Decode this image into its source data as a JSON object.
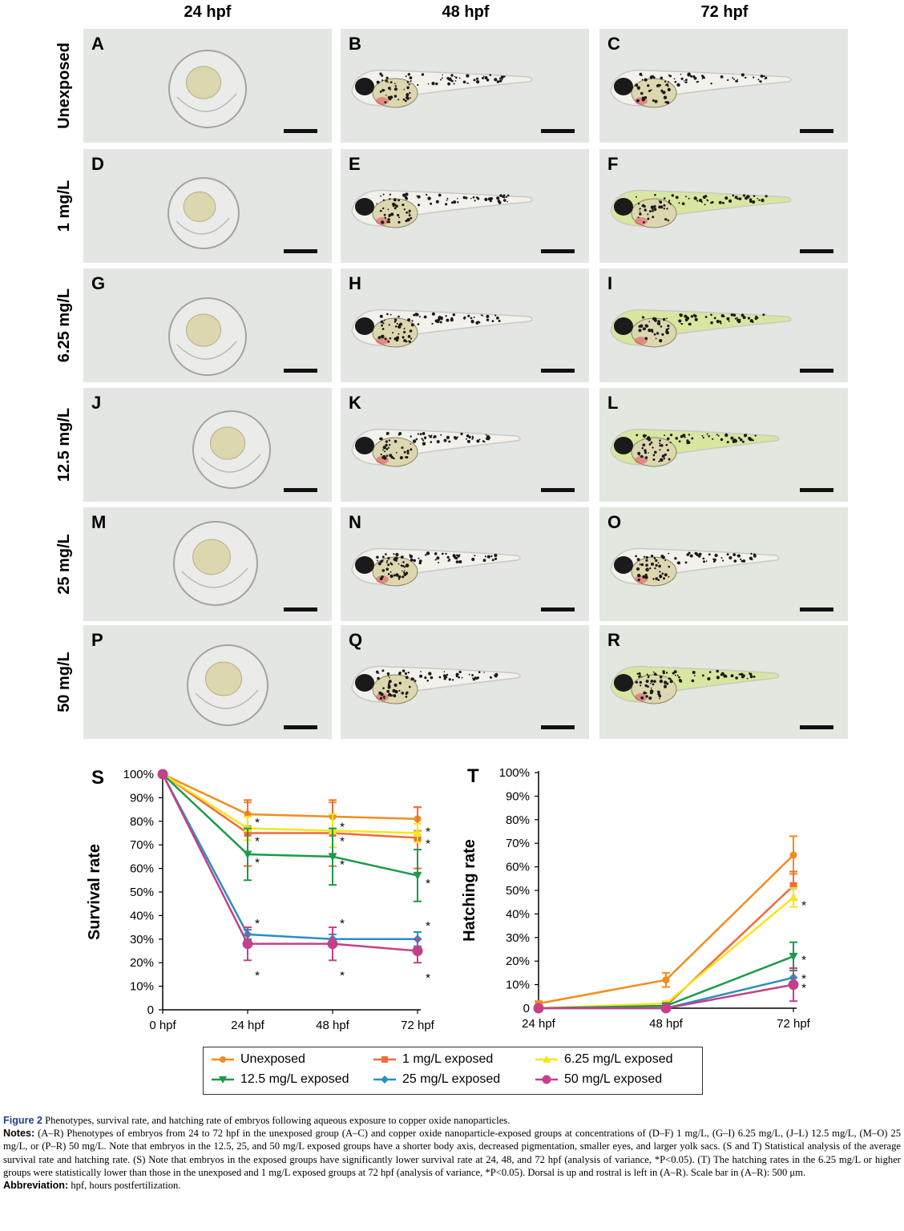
{
  "figure": {
    "column_headers": [
      "24 hpf",
      "48 hpf",
      "72 hpf"
    ],
    "row_labels": [
      "Unexposed",
      "1 mg/L",
      "6.25 mg/L",
      "12.5 mg/L",
      "25 mg/L",
      "50 mg/L"
    ],
    "panels": [
      {
        "letter": "A",
        "kind": "egg"
      },
      {
        "letter": "B",
        "kind": "larva"
      },
      {
        "letter": "C",
        "kind": "larva"
      },
      {
        "letter": "D",
        "kind": "egg"
      },
      {
        "letter": "E",
        "kind": "larva"
      },
      {
        "letter": "F",
        "kind": "larva"
      },
      {
        "letter": "G",
        "kind": "egg"
      },
      {
        "letter": "H",
        "kind": "larva"
      },
      {
        "letter": "I",
        "kind": "larva"
      },
      {
        "letter": "J",
        "kind": "egg"
      },
      {
        "letter": "K",
        "kind": "larva"
      },
      {
        "letter": "L",
        "kind": "larva"
      },
      {
        "letter": "M",
        "kind": "egg"
      },
      {
        "letter": "N",
        "kind": "larva"
      },
      {
        "letter": "O",
        "kind": "larva"
      },
      {
        "letter": "P",
        "kind": "egg"
      },
      {
        "letter": "Q",
        "kind": "larva"
      },
      {
        "letter": "R",
        "kind": "larva"
      }
    ],
    "colors": {
      "panel_bg": "#e4e6e4",
      "yolk": "#ddd7b0",
      "pigment": "#1a1a1a",
      "tail": "#c9c9c4",
      "green_tint": "#d8e6a0",
      "red": "#e05060"
    }
  },
  "chart_data": [
    {
      "panel_letter": "S",
      "type": "line",
      "title": "",
      "xlabel": "",
      "ylabel": "Survival rate",
      "categories": [
        "0 hpf",
        "24 hpf",
        "48 hpf",
        "72 hpf"
      ],
      "yticks": [
        "0",
        "10%",
        "20%",
        "30%",
        "40%",
        "50%",
        "60%",
        "70%",
        "80%",
        "90%",
        "100%"
      ],
      "ylim": [
        0,
        100
      ],
      "series": [
        {
          "name": "Unexposed",
          "color": "#f28c1e",
          "marker": "circle",
          "values": [
            100,
            83,
            82,
            81
          ],
          "err": [
            0,
            5,
            6,
            5
          ]
        },
        {
          "name": "1 mg/L exposed",
          "color": "#ef6b3a",
          "marker": "square",
          "values": [
            100,
            75,
            75,
            73
          ],
          "err": [
            0,
            14,
            14,
            13
          ]
        },
        {
          "name": "6.25 mg/L exposed",
          "color": "#f5e61a",
          "marker": "triangle-up",
          "values": [
            100,
            77,
            76,
            75
          ],
          "err": [
            0,
            5,
            7,
            4
          ]
        },
        {
          "name": "12.5 mg/L exposed",
          "color": "#1b9a4a",
          "marker": "triangle-down",
          "values": [
            100,
            66,
            65,
            57
          ],
          "err": [
            0,
            11,
            12,
            11
          ]
        },
        {
          "name": "25 mg/L exposed",
          "color": "#2a8fc2",
          "marker": "diamond",
          "values": [
            100,
            32,
            30,
            30
          ],
          "err": [
            0,
            2,
            2,
            3
          ]
        },
        {
          "name": "50 mg/L exposed",
          "color": "#c4408a",
          "marker": "circle",
          "values": [
            100,
            28,
            28,
            25
          ],
          "err": [
            0,
            7,
            7,
            5
          ]
        }
      ],
      "asterisks": [
        {
          "x": "24 hpf",
          "y": 80,
          "text": "*"
        },
        {
          "x": "24 hpf",
          "y": 72,
          "text": "*"
        },
        {
          "x": "24 hpf",
          "y": 63,
          "text": "*"
        },
        {
          "x": "48 hpf",
          "y": 78,
          "text": "*"
        },
        {
          "x": "48 hpf",
          "y": 72,
          "text": "*"
        },
        {
          "x": "48 hpf",
          "y": 62,
          "text": "*"
        },
        {
          "x": "72 hpf",
          "y": 76,
          "text": "*"
        },
        {
          "x": "72 hpf",
          "y": 71,
          "text": "*"
        },
        {
          "x": "72 hpf",
          "y": 54,
          "text": "*"
        },
        {
          "x": "24 hpf",
          "y": 37,
          "text": "*"
        },
        {
          "x": "48 hpf",
          "y": 37,
          "text": "*"
        },
        {
          "x": "72 hpf",
          "y": 36,
          "text": "*"
        },
        {
          "x": "24 hpf",
          "y": 15,
          "text": "*"
        },
        {
          "x": "48 hpf",
          "y": 15,
          "text": "*"
        },
        {
          "x": "72 hpf",
          "y": 14,
          "text": "*"
        }
      ]
    },
    {
      "panel_letter": "T",
      "type": "line",
      "title": "",
      "xlabel": "",
      "ylabel": "Hatching rate",
      "categories": [
        "24 hpf",
        "48 hpf",
        "72 hpf"
      ],
      "yticks": [
        "0",
        "10%",
        "20%",
        "30%",
        "40%",
        "50%",
        "60%",
        "70%",
        "80%",
        "90%",
        "100%"
      ],
      "ylim": [
        0,
        100
      ],
      "series": [
        {
          "name": "Unexposed",
          "color": "#f28c1e",
          "marker": "circle",
          "values": [
            2,
            12,
            65
          ],
          "err": [
            1,
            3,
            8
          ]
        },
        {
          "name": "1 mg/L exposed",
          "color": "#ef6b3a",
          "marker": "square",
          "values": [
            0,
            1,
            52
          ],
          "err": [
            0,
            1,
            6
          ]
        },
        {
          "name": "6.25 mg/L exposed",
          "color": "#f5e61a",
          "marker": "triangle-up",
          "values": [
            0,
            2,
            47
          ],
          "err": [
            0,
            1,
            4
          ]
        },
        {
          "name": "12.5 mg/L exposed",
          "color": "#1b9a4a",
          "marker": "triangle-down",
          "values": [
            0,
            1,
            22
          ],
          "err": [
            0,
            1,
            6
          ]
        },
        {
          "name": "25 mg/L exposed",
          "color": "#2a8fc2",
          "marker": "diamond",
          "values": [
            0,
            0,
            13
          ],
          "err": [
            0,
            0,
            4
          ]
        },
        {
          "name": "50 mg/L exposed",
          "color": "#c4408a",
          "marker": "circle",
          "values": [
            0,
            0,
            10
          ],
          "err": [
            0,
            0,
            7
          ]
        }
      ],
      "asterisks": [
        {
          "x": "72 hpf",
          "y": 44,
          "text": "*"
        },
        {
          "x": "72 hpf",
          "y": 21,
          "text": "*"
        },
        {
          "x": "72 hpf",
          "y": 13,
          "text": "*"
        },
        {
          "x": "72 hpf",
          "y": 9,
          "text": "*"
        }
      ]
    }
  ],
  "legend": [
    {
      "name": "Unexposed",
      "color": "#f28c1e",
      "marker": "circle"
    },
    {
      "name": "1 mg/L exposed",
      "color": "#ef6b3a",
      "marker": "square"
    },
    {
      "name": "6.25 mg/L exposed",
      "color": "#f5e61a",
      "marker": "triangle-up"
    },
    {
      "name": "12.5 mg/L exposed",
      "color": "#1b9a4a",
      "marker": "triangle-down"
    },
    {
      "name": "25 mg/L exposed",
      "color": "#2a8fc2",
      "marker": "diamond"
    },
    {
      "name": "50 mg/L exposed",
      "color": "#c4408a",
      "marker": "circle"
    }
  ],
  "caption": {
    "figure_label": "Figure 2",
    "figure_title": "Phenotypes, survival rate, and hatching rate of embryos following aqueous exposure to copper oxide nanoparticles.",
    "notes_label": "Notes:",
    "notes_text": "(A–R) Phenotypes of embryos from 24 to 72 hpf in the unexposed group (A–C) and copper oxide nanoparticle-exposed groups at concentrations of (D–F) 1 mg/L, (G–I) 6.25 mg/L, (J–L) 12.5 mg/L, (M–O) 25 mg/L, or (P–R) 50 mg/L. Note that embryos in the 12.5, 25, and 50 mg/L exposed groups have a shorter body axis, decreased pigmentation, smaller eyes, and larger yolk sacs. (S and T) Statistical analysis of the average survival rate and hatching rate. (S) Note that embryos in the exposed groups have significantly lower survival rate at 24, 48, and 72 hpf (analysis of variance, *P<0.05). (T) The hatching rates in the 6.25 mg/L or higher groups were statistically lower than those in the unexposed and 1 mg/L exposed groups at 72 hpf (analysis of variance, *P<0.05). Dorsal is up and rostral is left in (A–R). Scale bar in (A–R): 500 μm.",
    "abbrev_label": "Abbreviation:",
    "abbrev_text": "hpf, hours postfertilization."
  }
}
